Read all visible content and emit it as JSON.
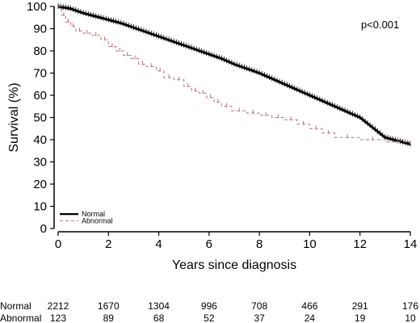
{
  "chart_data": {
    "type": "line",
    "subtype": "kaplan-meier survival curve",
    "ylabel": "Survival (%)",
    "xlabel": "Years since diagnosis",
    "xlim": [
      0,
      14
    ],
    "ylim": [
      0,
      100
    ],
    "x_ticks": [
      "0",
      "2",
      "4",
      "6",
      "8",
      "10",
      "12",
      "14"
    ],
    "y_ticks": [
      "0",
      "10",
      "20",
      "30",
      "40",
      "50",
      "60",
      "70",
      "80",
      "90",
      "100"
    ],
    "annotation": "p<0.001",
    "legend_position": "bottom-left",
    "series": [
      {
        "name": "Normal",
        "style": "solid-black",
        "color": "#000000",
        "x": [
          0,
          0.5,
          1,
          1.5,
          2,
          2.5,
          3,
          3.5,
          4,
          4.5,
          5,
          5.5,
          6,
          6.5,
          7,
          7.5,
          8,
          8.5,
          9,
          9.5,
          10,
          10.5,
          11,
          11.5,
          12,
          12.5,
          13,
          13.5,
          14
        ],
        "y": [
          100,
          99,
          97,
          95.5,
          94,
          92.5,
          90.5,
          88.5,
          86.5,
          84.5,
          82.5,
          80.5,
          78.5,
          76.5,
          74,
          72,
          70,
          67.5,
          65,
          62.5,
          60,
          57.5,
          55,
          52.5,
          50,
          45.5,
          41,
          39.5,
          38
        ]
      },
      {
        "name": "Abnormal",
        "style": "dashed-pink",
        "color": "#c0707d",
        "x": [
          0,
          0.15,
          0.3,
          0.5,
          0.7,
          1.0,
          1.3,
          1.7,
          2.0,
          2.3,
          2.6,
          2.9,
          3.2,
          3.5,
          3.9,
          4.2,
          4.6,
          5.0,
          5.3,
          5.6,
          5.9,
          6.2,
          6.5,
          6.9,
          7.5,
          8.0,
          8.5,
          9.0,
          9.5,
          10.0,
          10.5,
          11.0,
          12.0,
          13.0,
          14.0
        ],
        "y": [
          100,
          96,
          93,
          91,
          89,
          88,
          87,
          85,
          82,
          80,
          78,
          76.5,
          74,
          73,
          71,
          68,
          67,
          64,
          62,
          61,
          59,
          57,
          55,
          53,
          52,
          51,
          50,
          49,
          47,
          45,
          43,
          41,
          40,
          39,
          38
        ]
      }
    ],
    "risk_table": {
      "times": [
        0,
        2,
        4,
        6,
        8,
        10,
        12,
        14
      ],
      "rows": [
        {
          "label": "Normal",
          "values": [
            "2212",
            "1670",
            "1304",
            "996",
            "708",
            "466",
            "291",
            "176"
          ]
        },
        {
          "label": "Abnormal",
          "values": [
            "123",
            "89",
            "68",
            "52",
            "37",
            "24",
            "19",
            "10"
          ]
        }
      ]
    }
  }
}
